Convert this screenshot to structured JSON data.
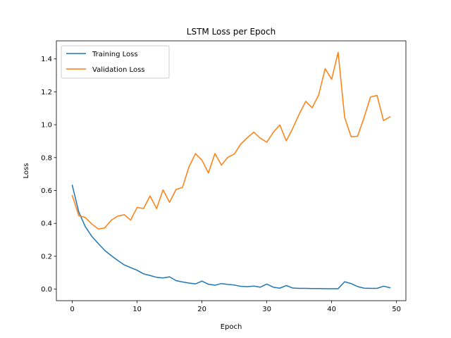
{
  "chart_data": {
    "type": "line",
    "title": "LSTM Loss per Epoch",
    "xlabel": "Epoch",
    "ylabel": "Loss",
    "xlim": [
      -2.45,
      51.45
    ],
    "ylim": [
      -0.07,
      1.51
    ],
    "xticks": [
      0,
      10,
      20,
      30,
      40,
      50
    ],
    "yticks": [
      0.0,
      0.2,
      0.4,
      0.6,
      0.8,
      1.0,
      1.2,
      1.4
    ],
    "ytick_labels": [
      "0.0",
      "0.2",
      "0.4",
      "0.6",
      "0.8",
      "1.0",
      "1.2",
      "1.4"
    ],
    "grid": false,
    "legend_position": "top-left",
    "x": [
      0,
      1,
      2,
      3,
      4,
      5,
      6,
      7,
      8,
      9,
      10,
      11,
      12,
      13,
      14,
      15,
      16,
      17,
      18,
      19,
      20,
      21,
      22,
      23,
      24,
      25,
      26,
      27,
      28,
      29,
      30,
      31,
      32,
      33,
      34,
      35,
      36,
      37,
      38,
      39,
      40,
      41,
      42,
      43,
      44,
      45,
      46,
      47,
      48,
      49
    ],
    "series": [
      {
        "name": "Training Loss",
        "color": "#1f77b4",
        "values": [
          0.632,
          0.47,
          0.381,
          0.322,
          0.278,
          0.236,
          0.204,
          0.175,
          0.148,
          0.131,
          0.115,
          0.093,
          0.083,
          0.072,
          0.068,
          0.075,
          0.052,
          0.044,
          0.037,
          0.032,
          0.049,
          0.03,
          0.024,
          0.034,
          0.029,
          0.025,
          0.017,
          0.015,
          0.019,
          0.012,
          0.031,
          0.012,
          0.006,
          0.022,
          0.007,
          0.005,
          0.005,
          0.004,
          0.004,
          0.003,
          0.003,
          0.003,
          0.045,
          0.034,
          0.016,
          0.006,
          0.005,
          0.005,
          0.018,
          0.009
        ]
      },
      {
        "name": "Validation Loss",
        "color": "#ff7f0e",
        "values": [
          0.57,
          0.447,
          0.436,
          0.397,
          0.366,
          0.372,
          0.419,
          0.444,
          0.453,
          0.42,
          0.497,
          0.491,
          0.567,
          0.49,
          0.604,
          0.528,
          0.606,
          0.619,
          0.744,
          0.824,
          0.784,
          0.707,
          0.825,
          0.755,
          0.802,
          0.822,
          0.883,
          0.921,
          0.955,
          0.918,
          0.894,
          0.954,
          0.999,
          0.902,
          0.978,
          1.065,
          1.142,
          1.103,
          1.181,
          1.341,
          1.276,
          1.44,
          1.045,
          0.927,
          0.93,
          1.044,
          1.169,
          1.178,
          1.025,
          1.048
        ]
      }
    ]
  }
}
